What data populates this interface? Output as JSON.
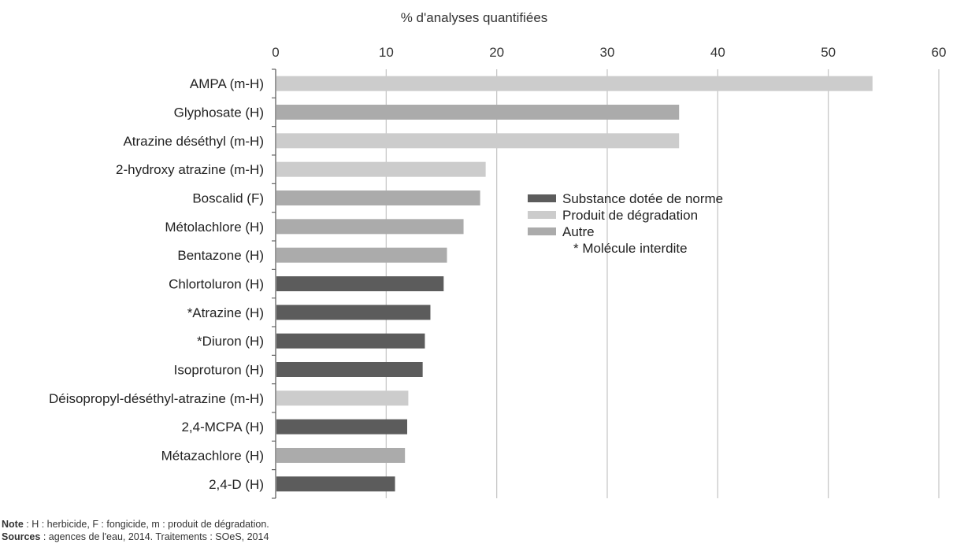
{
  "chart_data": {
    "type": "bar",
    "orientation": "horizontal",
    "title": "",
    "xlabel": "% d'analyses quantifiées",
    "ylabel": "",
    "xlim": [
      0,
      60
    ],
    "xticks": [
      0,
      10,
      20,
      30,
      40,
      50,
      60
    ],
    "grid": true,
    "legend_position": "center-right",
    "categories": [
      "AMPA (m-H)",
      "Glyphosate (H)",
      "Atrazine déséthyl (m-H)",
      "2-hydroxy atrazine (m-H)",
      "Boscalid (F)",
      "Métolachlore (H)",
      "Bentazone (H)",
      "Chlortoluron (H)",
      "*Atrazine (H)",
      "*Diuron (H)",
      "Isoproturon (H)",
      "Déisopropyl-déséthyl-atrazine (m-H)",
      "2,4-MCPA (H)",
      "Métazachlore (H)",
      "2,4-D (H)"
    ],
    "values": [
      54.0,
      36.5,
      36.5,
      19.0,
      18.5,
      17.0,
      15.5,
      15.2,
      14.0,
      13.5,
      13.3,
      12.0,
      11.9,
      11.7,
      10.8
    ],
    "groups": [
      "degradation",
      "autre",
      "degradation",
      "degradation",
      "autre",
      "autre",
      "autre",
      "norme",
      "norme",
      "norme",
      "norme",
      "degradation",
      "norme",
      "autre",
      "norme"
    ],
    "legend": [
      {
        "key": "norme",
        "label": "Substance dotée de norme",
        "color": "#5c5c5c"
      },
      {
        "key": "degradation",
        "label": "Produit de dégradation",
        "color": "#cccccc"
      },
      {
        "key": "autre",
        "label": "Autre",
        "color": "#ababab"
      },
      {
        "key": "note",
        "label": "* Molécule interdite",
        "color": ""
      }
    ]
  },
  "footnotes": {
    "note_label": "Note",
    "note_text": " : H : herbicide, F : fongicide, m : produit de dégradation.",
    "sources_label": "Sources",
    "sources_text": " : agences de l'eau, 2014. Traitements : SOeS, 2014"
  }
}
